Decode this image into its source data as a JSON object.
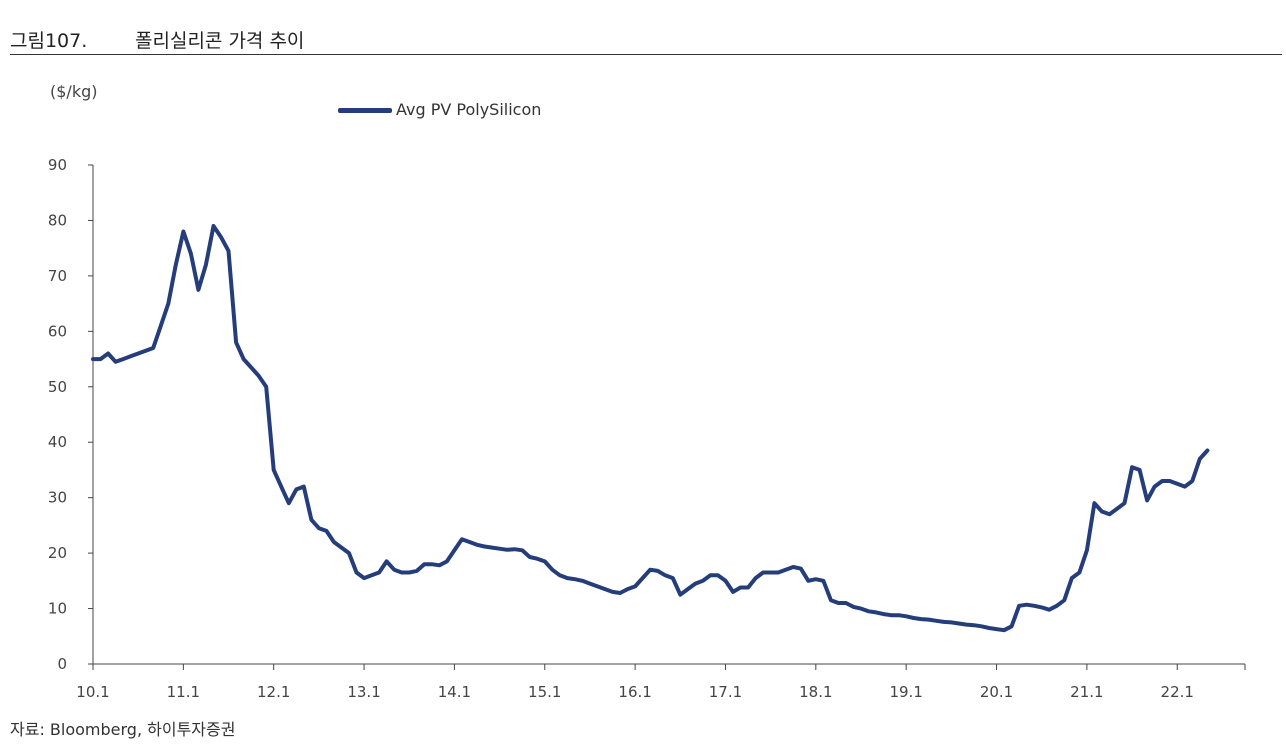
{
  "figure": {
    "number": "그림107.",
    "title": "폴리실리콘 가격 추이",
    "unit": "($/kg)",
    "source": "자료: Bloomberg,  하이투자증권"
  },
  "colors": {
    "series": "#253d7a",
    "axis": "#444444"
  },
  "chart_data": {
    "type": "line",
    "title": "폴리실리콘 가격 추이",
    "ylabel": "($/kg)",
    "xlabel": "",
    "ylim": [
      0,
      90
    ],
    "yticks": [
      0,
      10,
      20,
      30,
      40,
      50,
      60,
      70,
      80,
      90
    ],
    "xlim": [
      "2010-01",
      "2022-10"
    ],
    "xtick_labels": [
      "10.1",
      "11.1",
      "12.1",
      "13.1",
      "14.1",
      "15.1",
      "16.1",
      "17.1",
      "18.1",
      "19.1",
      "20.1",
      "21.1",
      "22.1"
    ],
    "grid": false,
    "legend_position": "top-left",
    "series": [
      {
        "name": "Avg PV PolySilicon",
        "points": [
          [
            "2010-01",
            55
          ],
          [
            "2010-02",
            55
          ],
          [
            "2010-03",
            56
          ],
          [
            "2010-04",
            54.5
          ],
          [
            "2010-05",
            55
          ],
          [
            "2010-06",
            55.5
          ],
          [
            "2010-07",
            56
          ],
          [
            "2010-08",
            56.5
          ],
          [
            "2010-09",
            57
          ],
          [
            "2010-10",
            61
          ],
          [
            "2010-11",
            65
          ],
          [
            "2010-12",
            72
          ],
          [
            "2011-01",
            78
          ],
          [
            "2011-02",
            74
          ],
          [
            "2011-03",
            67.5
          ],
          [
            "2011-04",
            72
          ],
          [
            "2011-05",
            79
          ],
          [
            "2011-06",
            77
          ],
          [
            "2011-07",
            74.5
          ],
          [
            "2011-08",
            58
          ],
          [
            "2011-09",
            55
          ],
          [
            "2011-10",
            53.5
          ],
          [
            "2011-11",
            52
          ],
          [
            "2011-12",
            50
          ],
          [
            "2012-01",
            35
          ],
          [
            "2012-02",
            32
          ],
          [
            "2012-03",
            29
          ],
          [
            "2012-04",
            31.5
          ],
          [
            "2012-05",
            32
          ],
          [
            "2012-06",
            26
          ],
          [
            "2012-07",
            24.5
          ],
          [
            "2012-08",
            24
          ],
          [
            "2012-09",
            22
          ],
          [
            "2012-10",
            21
          ],
          [
            "2012-11",
            20
          ],
          [
            "2012-12",
            16.5
          ],
          [
            "2013-01",
            15.5
          ],
          [
            "2013-02",
            16
          ],
          [
            "2013-03",
            16.5
          ],
          [
            "2013-04",
            18.5
          ],
          [
            "2013-05",
            17
          ],
          [
            "2013-06",
            16.5
          ],
          [
            "2013-07",
            16.5
          ],
          [
            "2013-08",
            16.8
          ],
          [
            "2013-09",
            18
          ],
          [
            "2013-10",
            18
          ],
          [
            "2013-11",
            17.8
          ],
          [
            "2013-12",
            18.5
          ],
          [
            "2014-01",
            20.5
          ],
          [
            "2014-02",
            22.5
          ],
          [
            "2014-03",
            22
          ],
          [
            "2014-04",
            21.5
          ],
          [
            "2014-05",
            21.2
          ],
          [
            "2014-06",
            21
          ],
          [
            "2014-07",
            20.8
          ],
          [
            "2014-08",
            20.6
          ],
          [
            "2014-09",
            20.7
          ],
          [
            "2014-10",
            20.5
          ],
          [
            "2014-11",
            19.3
          ],
          [
            "2014-12",
            19
          ],
          [
            "2015-01",
            18.5
          ],
          [
            "2015-02",
            17
          ],
          [
            "2015-03",
            16
          ],
          [
            "2015-04",
            15.5
          ],
          [
            "2015-05",
            15.3
          ],
          [
            "2015-06",
            15
          ],
          [
            "2015-07",
            14.5
          ],
          [
            "2015-08",
            14
          ],
          [
            "2015-09",
            13.5
          ],
          [
            "2015-10",
            13
          ],
          [
            "2015-11",
            12.8
          ],
          [
            "2015-12",
            13.5
          ],
          [
            "2016-01",
            14
          ],
          [
            "2016-02",
            15.5
          ],
          [
            "2016-03",
            17
          ],
          [
            "2016-04",
            16.8
          ],
          [
            "2016-05",
            16
          ],
          [
            "2016-06",
            15.5
          ],
          [
            "2016-07",
            12.5
          ],
          [
            "2016-08",
            13.5
          ],
          [
            "2016-09",
            14.5
          ],
          [
            "2016-10",
            15
          ],
          [
            "2016-11",
            16
          ],
          [
            "2016-12",
            16
          ],
          [
            "2017-01",
            15
          ],
          [
            "2017-02",
            13
          ],
          [
            "2017-03",
            13.8
          ],
          [
            "2017-04",
            13.8
          ],
          [
            "2017-05",
            15.5
          ],
          [
            "2017-06",
            16.5
          ],
          [
            "2017-07",
            16.5
          ],
          [
            "2017-08",
            16.5
          ],
          [
            "2017-09",
            17
          ],
          [
            "2017-10",
            17.5
          ],
          [
            "2017-11",
            17.2
          ],
          [
            "2017-12",
            15
          ],
          [
            "2018-01",
            15.3
          ],
          [
            "2018-02",
            15
          ],
          [
            "2018-03",
            11.5
          ],
          [
            "2018-04",
            11
          ],
          [
            "2018-05",
            11
          ],
          [
            "2018-06",
            10.3
          ],
          [
            "2018-07",
            10
          ],
          [
            "2018-08",
            9.5
          ],
          [
            "2018-09",
            9.3
          ],
          [
            "2018-10",
            9
          ],
          [
            "2018-11",
            8.8
          ],
          [
            "2018-12",
            8.8
          ],
          [
            "2019-01",
            8.6
          ],
          [
            "2019-02",
            8.3
          ],
          [
            "2019-03",
            8.1
          ],
          [
            "2019-04",
            8
          ],
          [
            "2019-05",
            7.8
          ],
          [
            "2019-06",
            7.6
          ],
          [
            "2019-07",
            7.5
          ],
          [
            "2019-08",
            7.3
          ],
          [
            "2019-09",
            7.1
          ],
          [
            "2019-10",
            7
          ],
          [
            "2019-11",
            6.8
          ],
          [
            "2019-12",
            6.5
          ],
          [
            "2020-01",
            6.3
          ],
          [
            "2020-02",
            6.1
          ],
          [
            "2020-03",
            6.8
          ],
          [
            "2020-04",
            10.5
          ],
          [
            "2020-05",
            10.7
          ],
          [
            "2020-06",
            10.5
          ],
          [
            "2020-07",
            10.2
          ],
          [
            "2020-08",
            9.8
          ],
          [
            "2020-09",
            10.5
          ],
          [
            "2020-10",
            11.5
          ],
          [
            "2020-11",
            15.5
          ],
          [
            "2020-12",
            16.5
          ],
          [
            "2021-01",
            20.5
          ],
          [
            "2021-02",
            29
          ],
          [
            "2021-03",
            27.5
          ],
          [
            "2021-04",
            27
          ],
          [
            "2021-05",
            28
          ],
          [
            "2021-06",
            29
          ],
          [
            "2021-07",
            35.5
          ],
          [
            "2021-08",
            35
          ],
          [
            "2021-09",
            29.5
          ],
          [
            "2021-10",
            32
          ],
          [
            "2021-11",
            33
          ],
          [
            "2021-12",
            33
          ],
          [
            "2022-01",
            32.5
          ],
          [
            "2022-02",
            32
          ],
          [
            "2022-03",
            33
          ],
          [
            "2022-04",
            37
          ],
          [
            "2022-05",
            38.5
          ]
        ]
      }
    ]
  }
}
